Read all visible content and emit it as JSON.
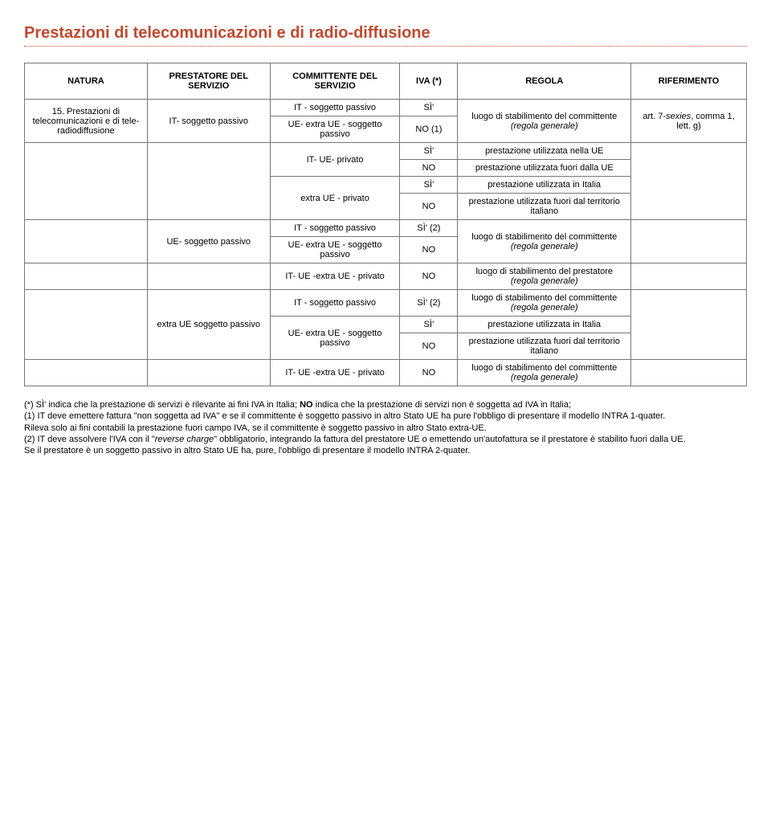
{
  "title": "Prestazioni di telecomunicazioni e di radio-diffusione",
  "header": {
    "natura": "NATURA",
    "prestatore": "PRESTATORE DEL SERVIZIO",
    "committente": "COMMITTENTE DEL SERVIZIO",
    "iva": "IVA (*)",
    "regola": "REGOLA",
    "riferimento": "RIFERIMENTO"
  },
  "col_widths": [
    "17%",
    "17%",
    "18%",
    "8%",
    "24%",
    "16%"
  ],
  "rows": {
    "r1_natura": "15. Prestazioni di telecomunicazioni e di tele-radiodiffusione",
    "r1_prest": "IT- soggetto passivo",
    "r1_comm_a": "IT - soggetto passivo",
    "r1_comm_b": "UE- extra UE - soggetto passivo",
    "r1_iva_a": "SÌ'",
    "r1_iva_b": "NO (1)",
    "r1_regola": "luogo di stabilimento del committente (regola generale)",
    "r1_rif": "art. 7-sexies, comma 1, lett. g)",
    "r2_comm_a": "IT- UE- privato",
    "r2_comm_b": "extra UE - privato",
    "r2_iva_a1": "SÌ'",
    "r2_iva_a2": "NO",
    "r2_iva_b1": "SÌ'",
    "r2_iva_b2": "NO",
    "r2_regola_a1": "prestazione utilizzata nella UE",
    "r2_regola_a2": "prestazione utilizzata fuori dalla UE",
    "r2_regola_b1": "prestazione utilizzata in Italia",
    "r2_regola_b2": "prestazione utilizzata fuori dal territorio italiano",
    "r3_prest": "UE- soggetto passivo",
    "r3_comm_a": "IT - soggetto passivo",
    "r3_comm_b": "UE- extra UE - soggetto passivo",
    "r3_iva_a": "SÌ' (2)",
    "r3_iva_b": "NO",
    "r3_regola": "luogo di stabilimento del committente (regola generale)",
    "r4_comm": "IT- UE -extra UE - privato",
    "r4_iva": "NO",
    "r4_regola": "luogo di stabilimento del prestatore (regola generale)",
    "r5_prest": "extra UE soggetto passivo",
    "r5_comm_a": "IT - soggetto passivo",
    "r5_iva_a": "SÌ' (2)",
    "r5_regola_a": "luogo di stabilimento del committente (regola generale)",
    "r5_comm_b": "UE- extra UE - soggetto passivo",
    "r5_iva_b1": "SÌ'",
    "r5_iva_b2": "NO",
    "r5_regola_b1": "prestazione utilizzata in Italia",
    "r5_regola_b2": "prestazione utilizzata fuori dal territorio italiano",
    "r6_comm": "IT- UE -extra UE - privato",
    "r6_iva": "NO",
    "r6_regola": "luogo di stabilimento del committente (regola generale)"
  },
  "footnotes": {
    "star": "(*) SÌ' indica che la prestazione di servizi è rilevante ai fini IVA in Italia; NO indica che la prestazione di servizi non è soggetta ad IVA in Italia;",
    "n1a": "(1) IT deve emettere fattura \"non soggetta ad IVA\" e se il committente è soggetto passivo in altro Stato UE ha pure l'obbligo di presentare il modello INTRA 1-quater.",
    "n1b": "Rileva solo ai fini contabili la prestazione fuori campo IVA, se il committente è soggetto passivo in altro Stato extra-UE.",
    "n2a": "(2) IT deve assolvere l'IVA con il \"reverse charge\" obbligatorio, integrando la fattura del prestatore UE o emettendo un'autofattura se il prestatore è stabilito fuori dalla UE.",
    "n2b": "Se il prestatore è un soggetto passivo in altro Stato UE ha, pure, l'obbligo di presentare il modello INTRA 2-quater."
  }
}
